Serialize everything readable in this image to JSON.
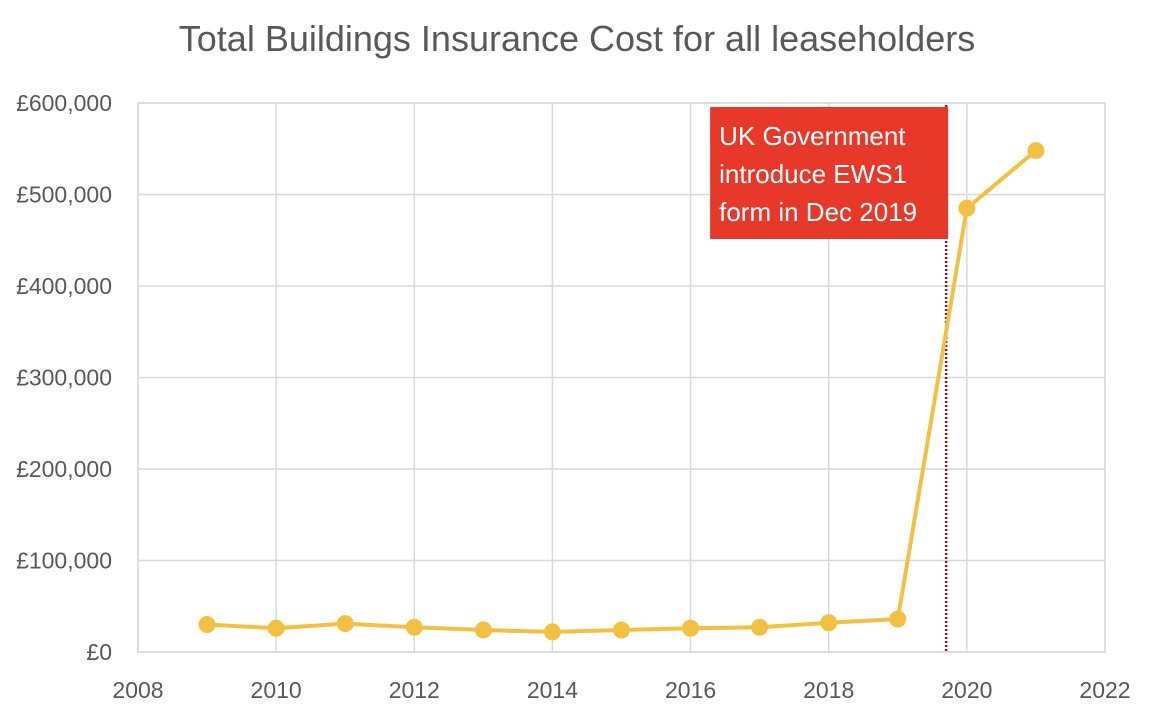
{
  "chart_data": {
    "type": "scatter",
    "title": "Total Buildings Insurance Cost for all leaseholders",
    "xlabel": "",
    "ylabel": "",
    "xlim": [
      2008,
      2022
    ],
    "ylim": [
      0,
      600000
    ],
    "x_ticks": [
      2008,
      2010,
      2012,
      2014,
      2016,
      2018,
      2020,
      2022
    ],
    "x_tick_labels": [
      "2008",
      "2010",
      "2012",
      "2014",
      "2016",
      "2018",
      "2020",
      "2022"
    ],
    "y_ticks": [
      0,
      100000,
      200000,
      300000,
      400000,
      500000,
      600000
    ],
    "y_tick_labels": [
      "£0",
      "£100,000",
      "£200,000",
      "£300,000",
      "£400,000",
      "£500,000",
      "£600,000"
    ],
    "grid": true,
    "series": [
      {
        "color": "#F3C142",
        "markers": true,
        "lines": true,
        "x": [
          2009,
          2010,
          2011,
          2012,
          2013,
          2014,
          2015,
          2016,
          2017,
          2018,
          2019,
          2020,
          2021
        ],
        "y": [
          30000,
          26000,
          31000,
          27000,
          24000,
          22000,
          24000,
          26000,
          27000,
          32000,
          36000,
          485000,
          548000
        ]
      }
    ],
    "annotations": [
      {
        "x": 2019.7,
        "line_style": "dotted",
        "line_color": "#8B1A1A",
        "box_color": "#E8382A",
        "text_color": "#FFFFFF",
        "text_lines": [
          "UK Government",
          "introduce EWS1",
          "form in Dec 2019"
        ]
      }
    ]
  }
}
